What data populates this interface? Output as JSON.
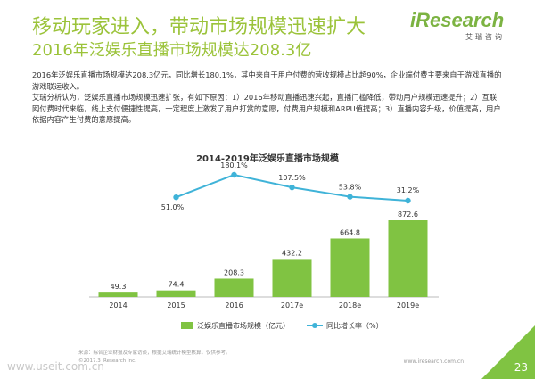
{
  "page": {
    "title": "移动玩家进入，带动市场规模迅速扩大",
    "subtitle": "2016年泛娱乐直播市场规模达208.3亿",
    "logo_text": "iResearch",
    "logo_subtext": "艾瑞咨询",
    "paragraphs": [
      "2016年泛娱乐直播市场规模达208.3亿元，同比增长180.1%，其中来自于用户付费的营收规模占比超90%，企业端付费主要来自于游戏直播的游戏联运收入。",
      "艾瑞分析认为，泛娱乐直播市场规模迅速扩张，有如下原因：1）2016年移动直播迅速兴起，直播门槛降低，带动用户规模迅速提升；2）互联网付费时代来临，线上支付便捷性提高，一定程度上激发了用户打赏的意愿，付费用户规模和ARPU值提高；3）直播内容升级，价值提高，用户依据内容产生付费的意愿提高。"
    ],
    "source_note": "来源：综合企业财报及专家访谈，根据艾瑞统计模型核算，仅供参考。",
    "copyright": "©2017.3 iResearch Inc.",
    "website": "www.iresearch.com.cn",
    "watermark": "www.useit.com.cn",
    "page_number": "23"
  },
  "colors": {
    "title": "#9bc33a",
    "bar": "#80c342",
    "line": "#3fb3d8",
    "page_corner": "#80c342"
  },
  "chart_data": {
    "type": "bar+line",
    "title": "2014-2019年泛娱乐直播市场规模",
    "categories": [
      "2014",
      "2015",
      "2016",
      "2017e",
      "2018e",
      "2019e"
    ],
    "series": [
      {
        "name": "泛娱乐直播市场规模（亿元）",
        "type": "bar",
        "values": [
          49.3,
          74.4,
          208.3,
          432.2,
          664.8,
          872.6
        ],
        "labels": [
          "49.3",
          "74.4",
          "208.3",
          "432.2",
          "664.8",
          "872.6"
        ]
      },
      {
        "name": "同比增长率（%）",
        "type": "line",
        "x": [
          "2015",
          "2016",
          "2017e",
          "2018e",
          "2019e"
        ],
        "values": [
          51.0,
          180.1,
          107.5,
          53.8,
          31.2
        ],
        "labels": [
          "51.0%",
          "180.1%",
          "107.5%",
          "53.8%",
          "31.2%"
        ]
      }
    ],
    "legend_position": "bottom",
    "grid": false
  }
}
